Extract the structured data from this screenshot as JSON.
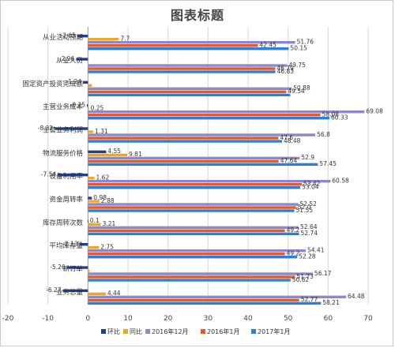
{
  "chart_data": {
    "type": "bar",
    "orientation": "horizontal",
    "title": "图表标题",
    "xlim": [
      -20,
      70
    ],
    "xticks": [
      "-20",
      "-10",
      "0",
      "10",
      "20",
      "30",
      "40",
      "50",
      "60",
      "70"
    ],
    "grid": true,
    "legend_position": "bottom",
    "categories": [
      "从业活动预期",
      "从业人员",
      "固定资产投资完成额",
      "主营业务成本",
      "主营业务利润",
      "物流服务价格",
      "设备利用率",
      "资金周转率",
      "库存周转次数",
      "平均库存量",
      "新订单",
      "业务总量"
    ],
    "series": [
      {
        "name": "环比",
        "color": "#1f3f8f",
        "values": [
          -2.65,
          -2.96,
          -1.24,
          -0.25,
          -8.32,
          4.55,
          -7.54,
          0.98,
          0.1,
          -2.13,
          -5.26,
          -6.27
        ],
        "labels": [
          "-2.65",
          "-2.96",
          "-1.24",
          "-0.25",
          "-8.32",
          "4.55",
          "-7.54",
          "0.98",
          "0.1",
          "-2.13",
          "-5.26",
          "-6.27"
        ]
      },
      {
        "name": "同比",
        "color": "#f0a820",
        "values": [
          7.7,
          0.0,
          1.0,
          0.25,
          1.31,
          9.81,
          1.62,
          2.88,
          3.21,
          2.75,
          0.4,
          4.44
        ],
        "labels": [
          "7.7",
          "",
          "",
          "0.25",
          "1.31",
          "9.81",
          "1.62",
          "2.88",
          "3.21",
          "2.75",
          "",
          "4.44"
        ]
      },
      {
        "name": "2016年12月",
        "color": "#8f87c8",
        "values": [
          51.76,
          49.75,
          50.88,
          69.08,
          56.8,
          52.9,
          60.58,
          52.52,
          52.64,
          54.41,
          56.17,
          64.48
        ],
        "labels": [
          "51.76",
          "49.75",
          "50.88",
          "69.08",
          "56.8",
          "52.9",
          "60.58",
          "52.52",
          "52.64",
          "54.41",
          "56.17",
          "64.48"
        ]
      },
      {
        "name": "2016年1月",
        "color": "#e25a2c",
        "values": [
          42.45,
          46.79,
          49.54,
          58.08,
          47.6,
          47.64,
          53.42,
          52.0,
          49.2,
          49.2,
          51.73,
          52.77
        ],
        "labels": [
          "42.45",
          "46.79",
          "49.54",
          "58.08",
          "47.6",
          "47.64",
          "53.42",
          "52.0",
          "49.2",
          "49.2",
          "51.73",
          "52.77"
        ]
      },
      {
        "name": "2017年1月",
        "color": "#2f7fd8",
        "values": [
          50.15,
          46.83,
          50.54,
          60.33,
          48.48,
          57.45,
          53.04,
          51.55,
          52.74,
          52.28,
          50.62,
          58.21
        ],
        "labels": [
          "50.15",
          "46.83",
          "",
          "60.33",
          "48.48",
          "57.45",
          "53.04",
          "51.55",
          "52.74",
          "52.28",
          "50.62",
          "58.21"
        ]
      }
    ]
  }
}
